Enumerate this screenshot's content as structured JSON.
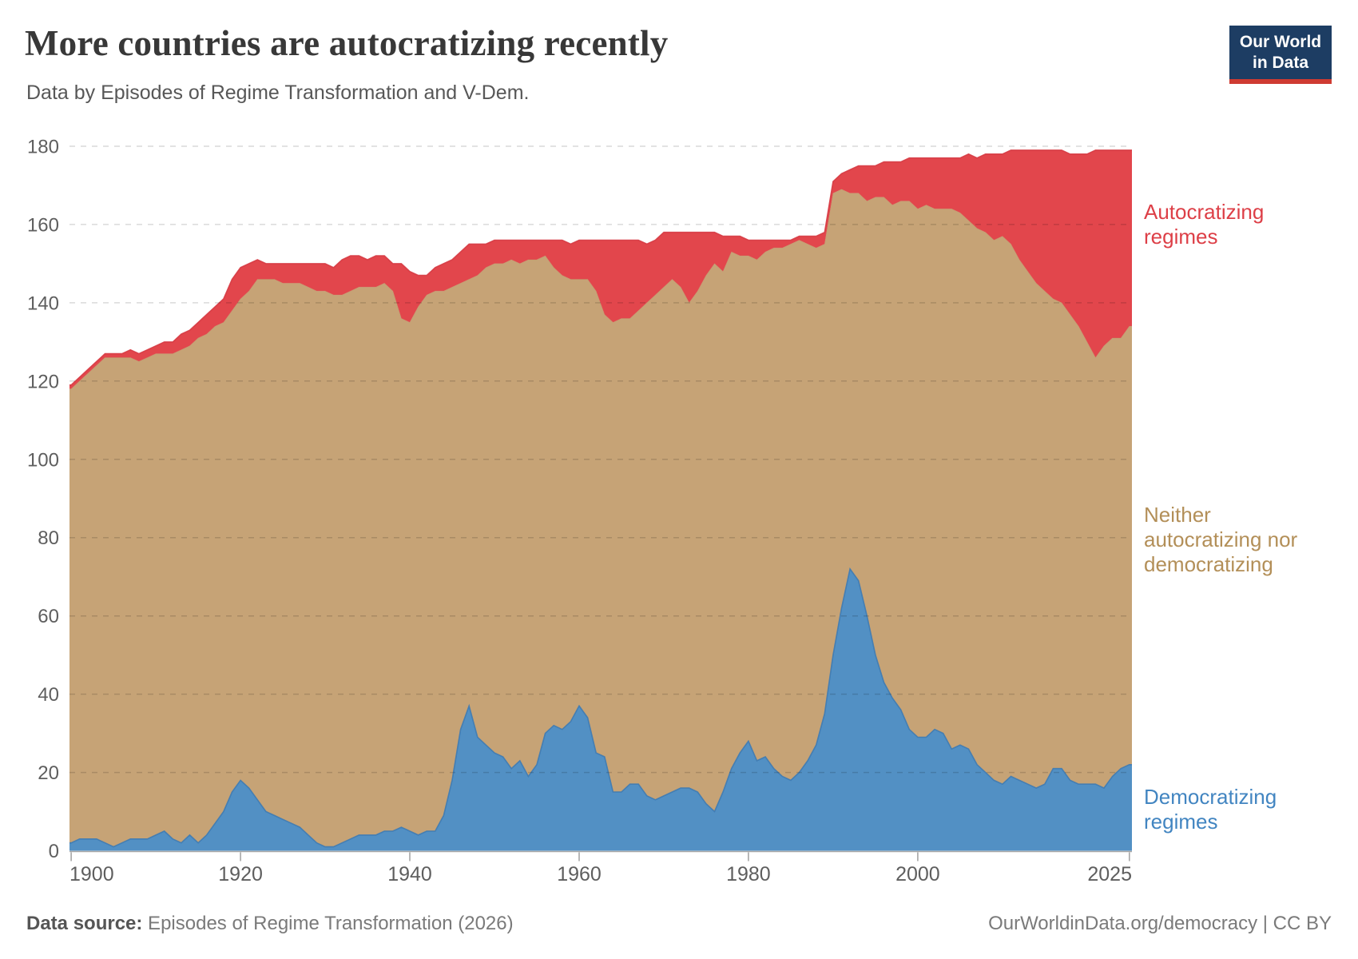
{
  "header": {
    "title": "More countries are autocratizing recently",
    "subtitle": "Data by Episodes of Regime Transformation and V-Dem.",
    "logo": {
      "line1": "Our World",
      "line2": "in Data",
      "bg_color": "#1d3d63",
      "bar_color": "#cf3b32"
    }
  },
  "chart_data": {
    "type": "area",
    "stacked": true,
    "title": "More countries are autocratizing recently",
    "xlabel": "",
    "ylabel": "",
    "x_start": 1900,
    "x_end": 2025,
    "ylim": [
      0,
      180
    ],
    "y_ticks": [
      0,
      20,
      40,
      60,
      80,
      100,
      120,
      140,
      160,
      180
    ],
    "x_ticks": [
      1900,
      1920,
      1940,
      1960,
      1980,
      2000,
      2025
    ],
    "grid": "horizontal-dashed",
    "legend_position": "right-annotations",
    "series": [
      {
        "name": "Democratizing regimes",
        "color": "#5290c4",
        "edge_color": "#3d7ab2",
        "values": [
          2,
          3,
          3,
          3,
          2,
          1,
          2,
          3,
          3,
          3,
          4,
          5,
          3,
          2,
          4,
          2,
          4,
          7,
          10,
          15,
          18,
          16,
          13,
          10,
          9,
          8,
          7,
          6,
          4,
          2,
          1,
          1,
          2,
          3,
          4,
          4,
          4,
          5,
          5,
          6,
          5,
          4,
          5,
          5,
          9,
          18,
          31,
          37,
          29,
          27,
          25,
          24,
          21,
          23,
          19,
          22,
          30,
          32,
          31,
          33,
          37,
          34,
          25,
          24,
          15,
          15,
          17,
          17,
          14,
          13,
          14,
          15,
          16,
          16,
          15,
          12,
          10,
          15,
          21,
          25,
          28,
          23,
          24,
          21,
          19,
          18,
          20,
          23,
          27,
          35,
          50,
          62,
          72,
          69,
          60,
          50,
          43,
          39,
          36,
          31,
          29,
          29,
          31,
          30,
          26,
          27,
          26,
          22,
          20,
          18,
          17,
          19,
          18,
          17,
          16,
          17,
          21,
          21,
          18,
          17,
          17,
          17,
          16,
          19,
          21,
          22
        ]
      },
      {
        "name": "Neither autocratizing nor democratizing",
        "color": "#c6a376",
        "edge_color": "#bb9765",
        "values": [
          116,
          117,
          119,
          121,
          124,
          125,
          124,
          123,
          122,
          123,
          123,
          122,
          124,
          126,
          125,
          129,
          128,
          127,
          125,
          123,
          123,
          127,
          133,
          136,
          137,
          137,
          138,
          139,
          140,
          141,
          142,
          141,
          140,
          140,
          140,
          140,
          140,
          140,
          138,
          130,
          130,
          135,
          137,
          138,
          134,
          126,
          114,
          109,
          118,
          122,
          125,
          126,
          130,
          127,
          132,
          129,
          122,
          117,
          116,
          113,
          109,
          112,
          118,
          113,
          120,
          121,
          119,
          121,
          126,
          129,
          130,
          131,
          128,
          124,
          128,
          135,
          140,
          133,
          132,
          127,
          124,
          128,
          129,
          133,
          135,
          137,
          136,
          132,
          127,
          120,
          118,
          107,
          96,
          99,
          106,
          117,
          124,
          126,
          130,
          135,
          135,
          136,
          133,
          134,
          138,
          136,
          135,
          137,
          138,
          138,
          140,
          136,
          133,
          131,
          129,
          126,
          120,
          119,
          119,
          117,
          113,
          109,
          113,
          112,
          110,
          112
        ]
      },
      {
        "name": "Autocratizing regimes",
        "color": "#e2464c",
        "edge_color": "#d63a43",
        "values": [
          1,
          1,
          1,
          1,
          1,
          1,
          1,
          2,
          2,
          2,
          2,
          3,
          3,
          4,
          4,
          4,
          5,
          5,
          6,
          8,
          8,
          7,
          5,
          4,
          4,
          5,
          5,
          5,
          6,
          7,
          7,
          7,
          9,
          9,
          8,
          7,
          8,
          7,
          7,
          14,
          13,
          8,
          5,
          6,
          7,
          7,
          8,
          9,
          8,
          6,
          6,
          6,
          5,
          6,
          5,
          5,
          4,
          7,
          9,
          9,
          10,
          10,
          13,
          19,
          21,
          20,
          20,
          18,
          15,
          14,
          14,
          12,
          14,
          18,
          15,
          11,
          8,
          9,
          4,
          5,
          4,
          5,
          3,
          2,
          2,
          1,
          1,
          2,
          3,
          3,
          3,
          4,
          6,
          7,
          9,
          8,
          9,
          11,
          10,
          11,
          13,
          12,
          13,
          13,
          13,
          14,
          17,
          18,
          20,
          22,
          21,
          24,
          28,
          31,
          34,
          36,
          38,
          39,
          41,
          44,
          48,
          53,
          50,
          48,
          48,
          45
        ]
      }
    ]
  },
  "series_labels": {
    "autocratizing": {
      "lines": [
        "Autocratizing",
        "regimes"
      ],
      "color": "#dd3f47"
    },
    "neither": {
      "lines": [
        "Neither",
        "autocratizing nor",
        "democratizing"
      ],
      "color": "#b38f58"
    },
    "democratizing": {
      "lines": [
        "Democratizing",
        "regimes"
      ],
      "color": "#4285c1"
    }
  },
  "footer": {
    "source_label": "Data source:",
    "source_text": " Episodes of Regime Transformation (2026)",
    "rights": "OurWorldinData.org/democracy | CC BY"
  },
  "axis_style": {
    "label_color": "#5e5e5e",
    "line_color": "#a6a6a6"
  }
}
